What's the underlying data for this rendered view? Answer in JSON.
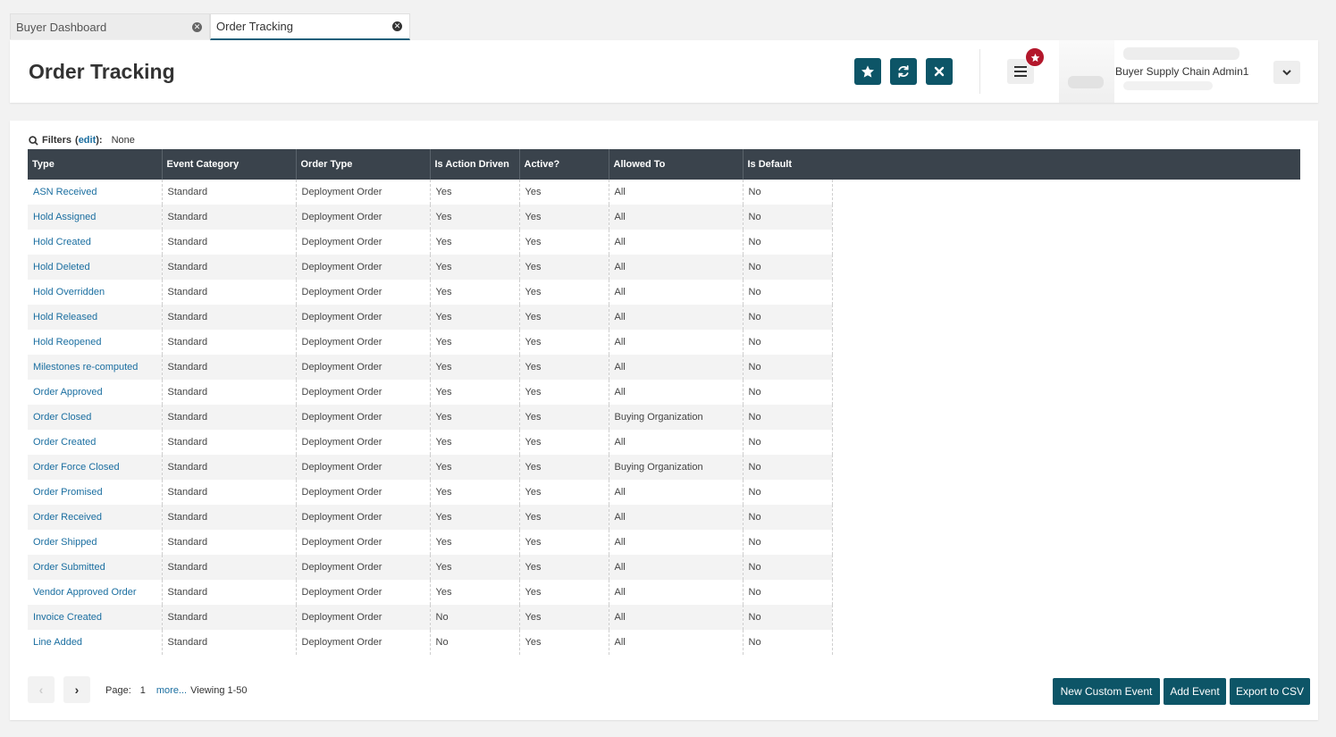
{
  "tabs": [
    {
      "label": "Buyer Dashboard",
      "active": false
    },
    {
      "label": "Order Tracking",
      "active": true
    }
  ],
  "header": {
    "title": "Order Tracking",
    "user_name": "Buyer Supply Chain Admin1",
    "icons": [
      "star-icon",
      "refresh-icon",
      "close-icon",
      "menu-icon",
      "chevron-down-icon"
    ]
  },
  "filters": {
    "label": "Filters",
    "edit_label": "edit",
    "value": "None"
  },
  "table": {
    "columns": [
      "Type",
      "Event Category",
      "Order Type",
      "Is Action Driven",
      "Active?",
      "Allowed To",
      "Is Default"
    ],
    "rows": [
      [
        "ASN Received",
        "Standard",
        "Deployment Order",
        "Yes",
        "Yes",
        "All",
        "No"
      ],
      [
        "Hold Assigned",
        "Standard",
        "Deployment Order",
        "Yes",
        "Yes",
        "All",
        "No"
      ],
      [
        "Hold Created",
        "Standard",
        "Deployment Order",
        "Yes",
        "Yes",
        "All",
        "No"
      ],
      [
        "Hold Deleted",
        "Standard",
        "Deployment Order",
        "Yes",
        "Yes",
        "All",
        "No"
      ],
      [
        "Hold Overridden",
        "Standard",
        "Deployment Order",
        "Yes",
        "Yes",
        "All",
        "No"
      ],
      [
        "Hold Released",
        "Standard",
        "Deployment Order",
        "Yes",
        "Yes",
        "All",
        "No"
      ],
      [
        "Hold Reopened",
        "Standard",
        "Deployment Order",
        "Yes",
        "Yes",
        "All",
        "No"
      ],
      [
        "Milestones re-computed",
        "Standard",
        "Deployment Order",
        "Yes",
        "Yes",
        "All",
        "No"
      ],
      [
        "Order Approved",
        "Standard",
        "Deployment Order",
        "Yes",
        "Yes",
        "All",
        "No"
      ],
      [
        "Order Closed",
        "Standard",
        "Deployment Order",
        "Yes",
        "Yes",
        "Buying Organization",
        "No"
      ],
      [
        "Order Created",
        "Standard",
        "Deployment Order",
        "Yes",
        "Yes",
        "All",
        "No"
      ],
      [
        "Order Force Closed",
        "Standard",
        "Deployment Order",
        "Yes",
        "Yes",
        "Buying Organization",
        "No"
      ],
      [
        "Order Promised",
        "Standard",
        "Deployment Order",
        "Yes",
        "Yes",
        "All",
        "No"
      ],
      [
        "Order Received",
        "Standard",
        "Deployment Order",
        "Yes",
        "Yes",
        "All",
        "No"
      ],
      [
        "Order Shipped",
        "Standard",
        "Deployment Order",
        "Yes",
        "Yes",
        "All",
        "No"
      ],
      [
        "Order Submitted",
        "Standard",
        "Deployment Order",
        "Yes",
        "Yes",
        "All",
        "No"
      ],
      [
        "Vendor Approved Order",
        "Standard",
        "Deployment Order",
        "Yes",
        "Yes",
        "All",
        "No"
      ],
      [
        "Invoice Created",
        "Standard",
        "Deployment Order",
        "No",
        "Yes",
        "All",
        "No"
      ],
      [
        "Line Added",
        "Standard",
        "Deployment Order",
        "No",
        "Yes",
        "All",
        "No"
      ]
    ]
  },
  "pager": {
    "page_label": "Page:",
    "page_number": "1",
    "more_label": "more...",
    "viewing": "Viewing 1-50"
  },
  "actions": {
    "new_custom_event": "New Custom Event",
    "add_event": "Add Event",
    "export_csv": "Export to CSV"
  },
  "colors": {
    "primary": "#0d5567",
    "link": "#1a6ea0",
    "table_header": "#3a434c",
    "badge": "#b3172b"
  }
}
